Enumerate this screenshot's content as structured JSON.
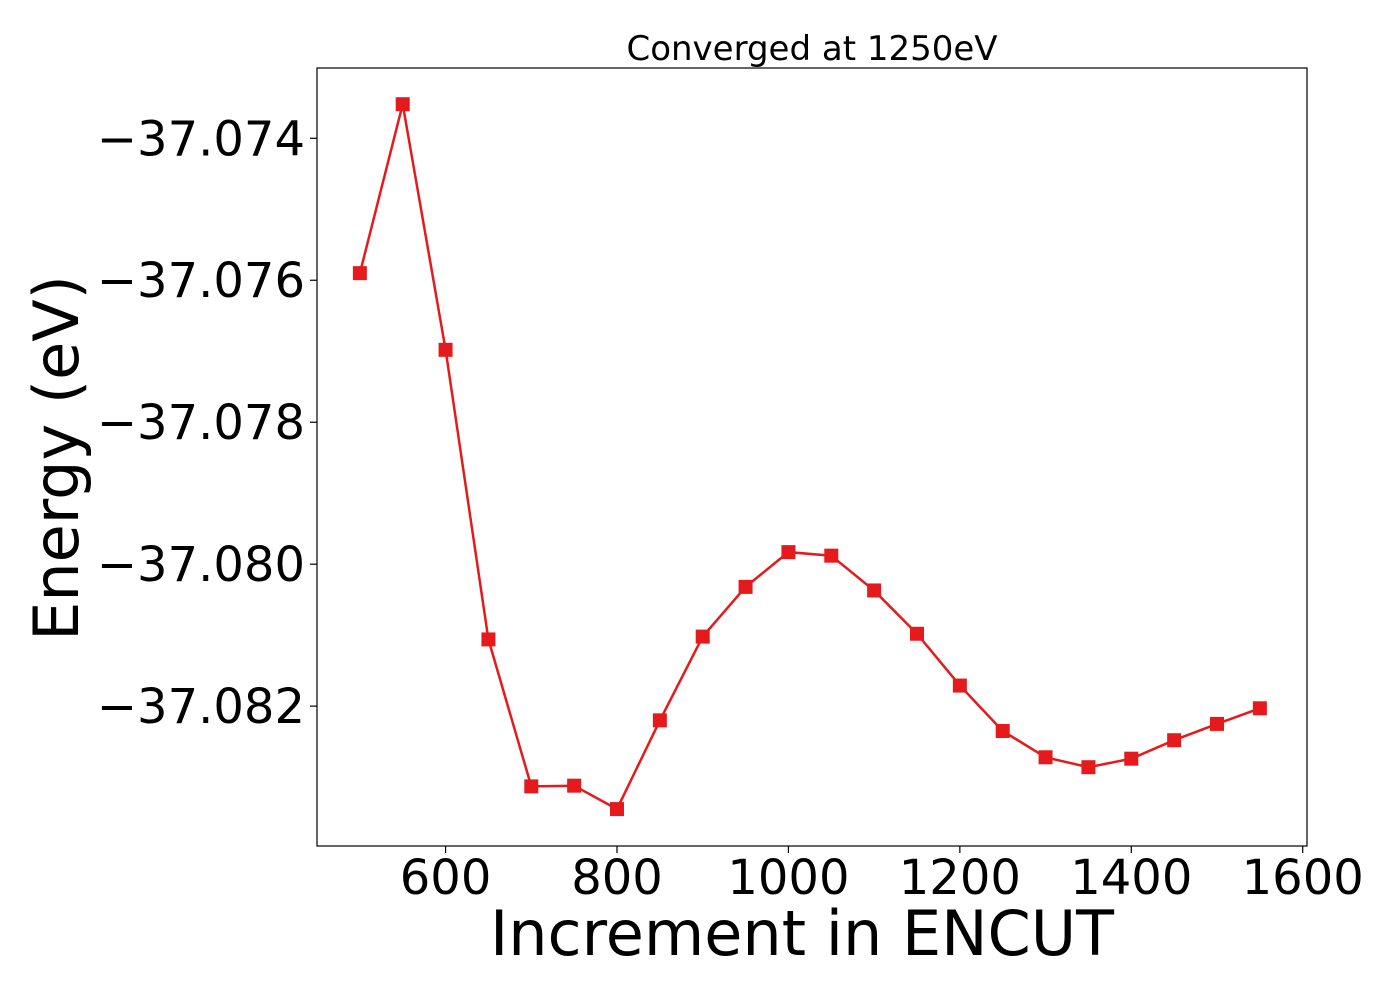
{
  "chart_data": {
    "type": "line",
    "title": "Converged at 1250eV",
    "xlabel": "Increment in ENCUT",
    "ylabel": "Energy (eV)",
    "x_ticks": [
      "600",
      "800",
      "1000",
      "1200",
      "1400",
      "1600"
    ],
    "y_ticks": [
      "−37.074",
      "−37.076",
      "−37.078",
      "−37.080",
      "−37.082"
    ],
    "xlim": [
      450,
      1605
    ],
    "ylim": [
      -37.08397,
      -37.07301
    ],
    "grid": false,
    "legend": "none",
    "series": [
      {
        "color": "#e41a1c",
        "marker": "square",
        "points": [
          {
            "x": 500,
            "y": -37.0759
          },
          {
            "x": 550,
            "y": -37.07352
          },
          {
            "x": 600,
            "y": -37.07698
          },
          {
            "x": 650,
            "y": -37.08106
          },
          {
            "x": 700,
            "y": -37.08313
          },
          {
            "x": 750,
            "y": -37.08312
          },
          {
            "x": 800,
            "y": -37.08345
          },
          {
            "x": 850,
            "y": -37.0822
          },
          {
            "x": 900,
            "y": -37.08102
          },
          {
            "x": 950,
            "y": -37.08032
          },
          {
            "x": 1000,
            "y": -37.07983
          },
          {
            "x": 1050,
            "y": -37.07988
          },
          {
            "x": 1100,
            "y": -37.08037
          },
          {
            "x": 1150,
            "y": -37.08098
          },
          {
            "x": 1200,
            "y": -37.08171
          },
          {
            "x": 1250,
            "y": -37.08235
          },
          {
            "x": 1300,
            "y": -37.08272
          },
          {
            "x": 1350,
            "y": -37.08286
          },
          {
            "x": 1400,
            "y": -37.08274
          },
          {
            "x": 1450,
            "y": -37.08248
          },
          {
            "x": 1500,
            "y": -37.08225
          },
          {
            "x": 1550,
            "y": -37.08203
          }
        ]
      }
    ]
  }
}
